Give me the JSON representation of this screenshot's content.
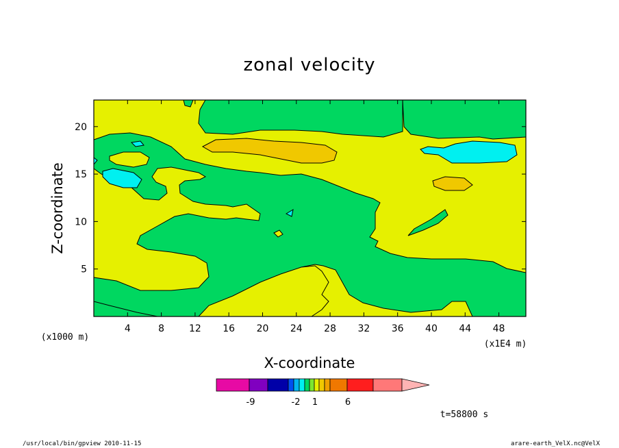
{
  "chart_data": {
    "type": "heatmap",
    "title": "zonal velocity",
    "xlabel": "X-coordinate",
    "ylabel": "Z-coordinate",
    "x_unit_note": "(x1E4 m)",
    "y_unit_note": "(x1000 m)",
    "xlim": [
      0,
      51.2
    ],
    "ylim": [
      0,
      22.8
    ],
    "x_ticks": [
      4,
      8,
      12,
      16,
      20,
      24,
      28,
      32,
      36,
      40,
      44,
      48
    ],
    "y_ticks": [
      5,
      10,
      15,
      20
    ],
    "colorbar": {
      "colors": [
        "#e70aa4",
        "#8000c0",
        "#0000a8",
        "#0050f0",
        "#00b4f0",
        "#00f0f0",
        "#00d760",
        "#7ce630",
        "#e6f000",
        "#f0c800",
        "#f0a000",
        "#f07800",
        "#ff1e1e",
        "#ff7878",
        "#ffb4b4"
      ],
      "labels": [
        "-9",
        "-2",
        "1",
        "6"
      ]
    },
    "regions": {
      "background": {
        "level": "0 to 1",
        "color": "#e6f000"
      },
      "positive_low": {
        "level": "1 to 2",
        "color": "#00d760"
      },
      "negative": {
        "level": "-2 to -1",
        "color": "#00f0f0"
      },
      "strong_positive": {
        "level": "3 to 4",
        "color": "#f0c800"
      }
    },
    "time_label": "t=58800 s",
    "grid": false
  },
  "footer": {
    "left": "/usr/local/bin/gpview  2010-11-15",
    "right": "arare-earth_VelX.nc@VelX"
  }
}
